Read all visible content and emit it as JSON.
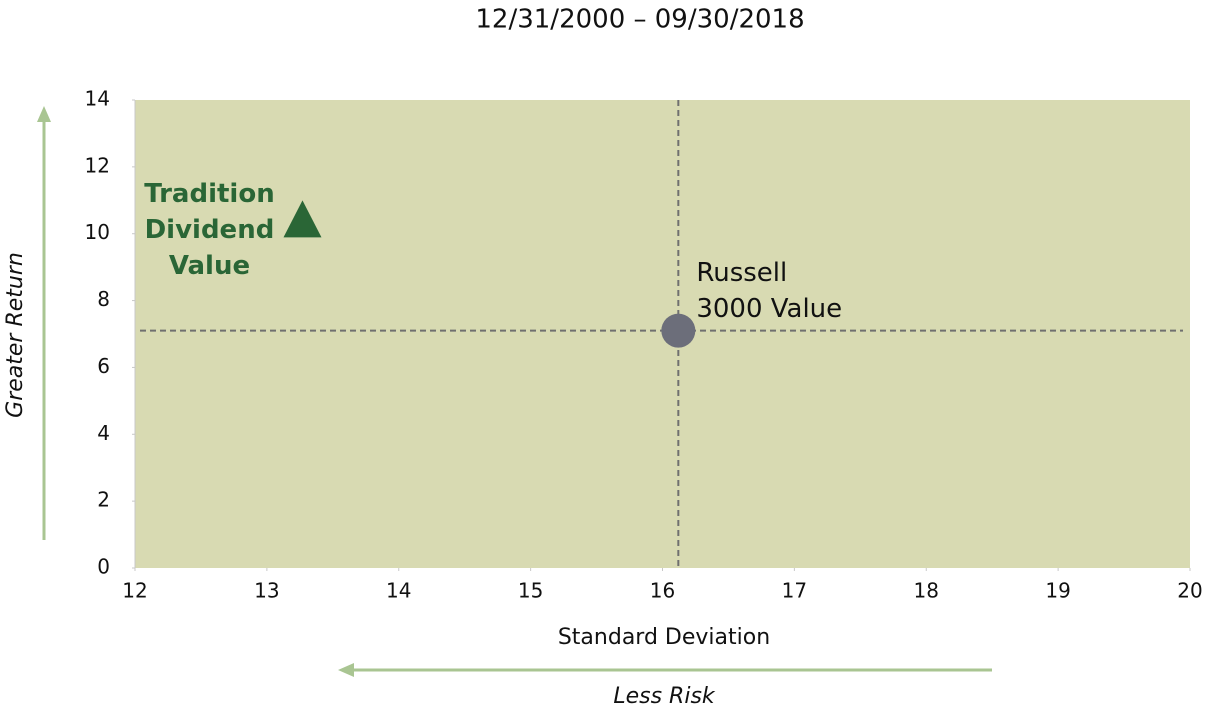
{
  "chart_data": {
    "type": "scatter",
    "title": "12/31/2000 – 09/30/2018",
    "x_label": "Standard Deviation",
    "y_label": "Greater Return",
    "annotations": [
      "Greater Return",
      "Less Risk"
    ],
    "series": [
      {
        "name": "Tradition Dividend Value",
        "color": "#2a6636",
        "marker": "triangle",
        "x": [
          13.27
        ],
        "values": [
          10.4
        ]
      },
      {
        "name": "Russell 3000 Value",
        "color": "#6c6e7a",
        "marker": "circle",
        "x": [
          16.12
        ],
        "values": [
          7.1
        ]
      }
    ],
    "xlim": [
      12,
      20
    ],
    "xticks": [
      12,
      13,
      14,
      15,
      16,
      17,
      18,
      19,
      20
    ],
    "ylim": [
      0,
      14
    ],
    "yticks": [
      0,
      2,
      4,
      6,
      8,
      10,
      12,
      14
    ],
    "background": "#d8dab2",
    "crosshair_series": 1
  }
}
